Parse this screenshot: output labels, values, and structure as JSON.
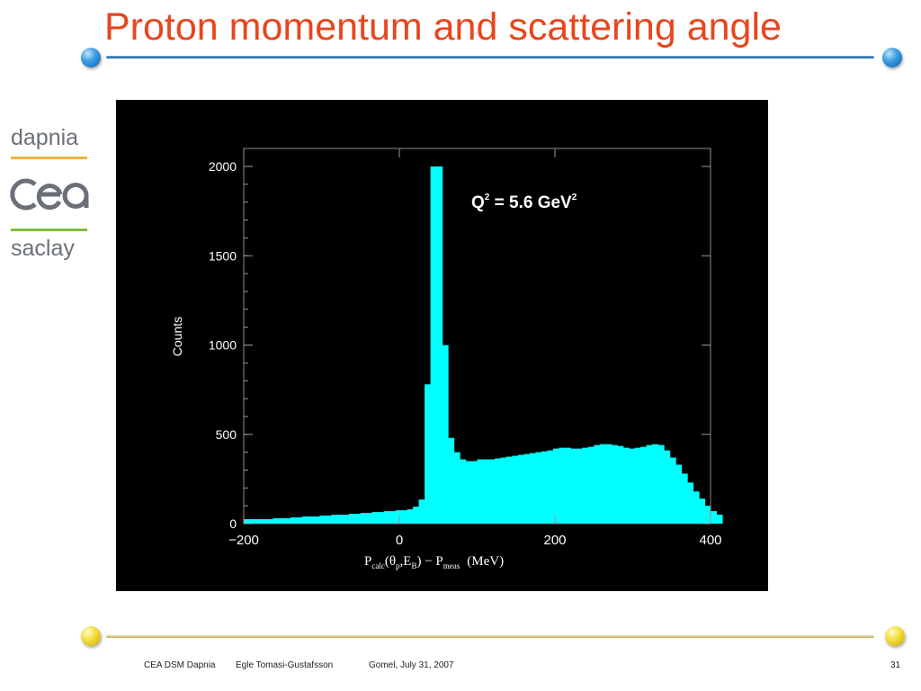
{
  "slide": {
    "title": "Proton momentum and scattering angle",
    "page_number": "31"
  },
  "logo": {
    "top_word": "dapnia",
    "middle_word": "cea",
    "bottom_word": "saclay"
  },
  "footer": {
    "organization": "CEA DSM Dapnia",
    "author": "Egle Tomasi-Gustafsson",
    "event": "Gomel, July 31, 2007"
  },
  "colors": {
    "title": "#e8461e",
    "top_rule": "#1f5c94",
    "bottom_rule": "#c2a85a",
    "histogram_fill": "#00ffff",
    "plot_background": "#000000"
  },
  "chart_data": {
    "type": "histogram",
    "title": "",
    "annotation": {
      "text": "Q",
      "sup1": "2",
      "mid": " = 5.6 GeV",
      "sup2": "2"
    },
    "ylabel": "Counts",
    "xlabel": {
      "p": "P",
      "calc": "calc",
      "open": "(θ",
      "p_sub": "p",
      "comma": ",E",
      "b_sub": "B",
      "close": ") − P",
      "meas": "meas",
      "unit": "(MeV)"
    },
    "xlim": [
      -200,
      400
    ],
    "ylim": [
      0,
      2000
    ],
    "x_ticks": [
      "−200",
      "0",
      "200",
      "400"
    ],
    "y_ticks": [
      "0",
      "500",
      "1000",
      "1500",
      "2000"
    ],
    "bin_edges_start": -200,
    "bin_width": 7.5,
    "counts": [
      25,
      25,
      25,
      25,
      25,
      30,
      30,
      30,
      35,
      35,
      40,
      40,
      40,
      45,
      45,
      50,
      50,
      50,
      55,
      55,
      60,
      60,
      65,
      65,
      70,
      70,
      75,
      75,
      80,
      95,
      135,
      780,
      2000,
      2000,
      1000,
      480,
      400,
      360,
      350,
      350,
      360,
      360,
      360,
      365,
      370,
      375,
      380,
      385,
      390,
      395,
      400,
      405,
      410,
      420,
      425,
      425,
      420,
      420,
      425,
      430,
      440,
      445,
      445,
      440,
      435,
      425,
      420,
      425,
      430,
      440,
      445,
      440,
      410,
      370,
      330,
      280,
      230,
      180,
      140,
      100,
      70,
      50
    ]
  }
}
